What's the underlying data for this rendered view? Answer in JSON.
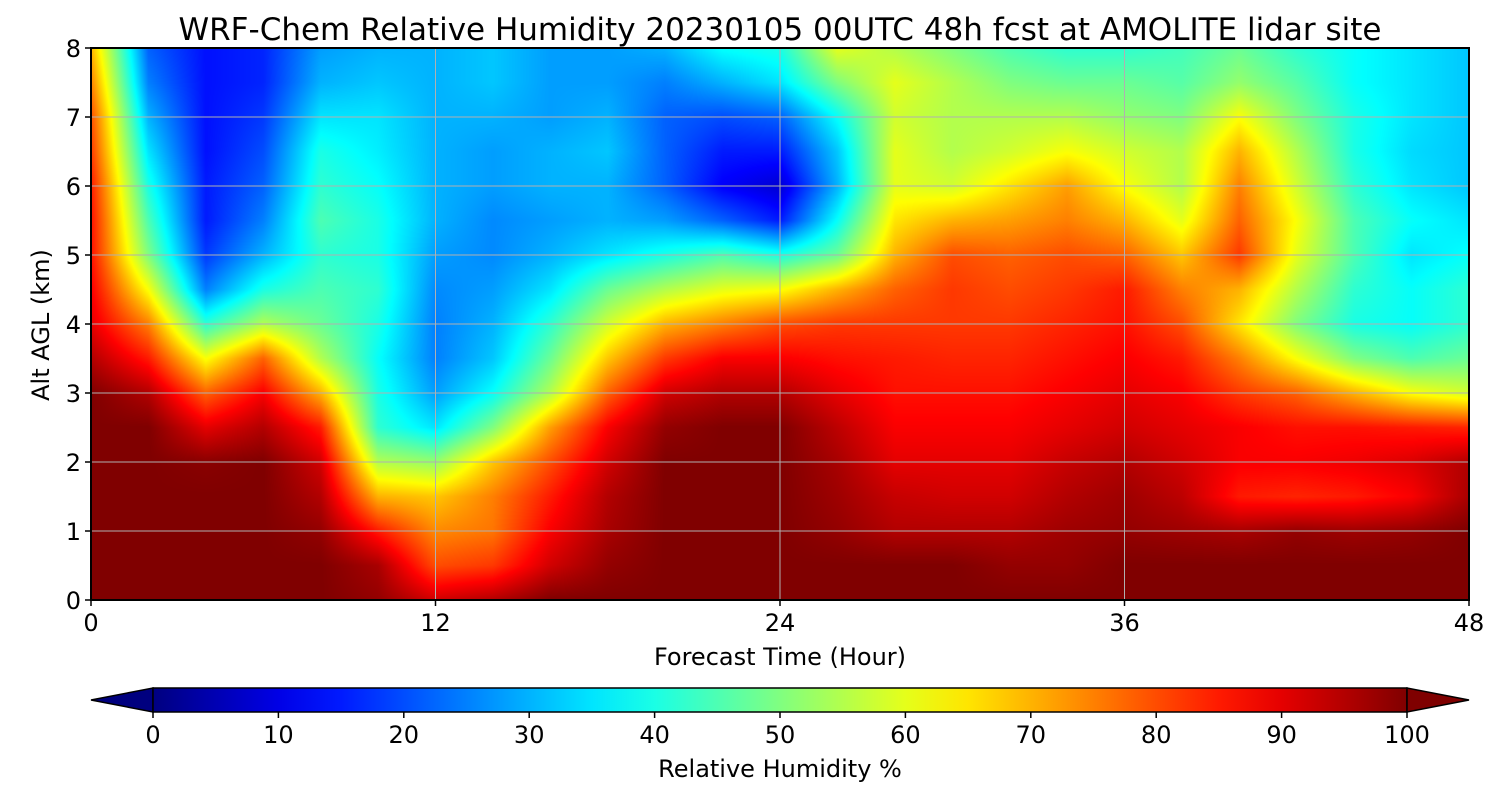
{
  "chart_data": {
    "type": "heatmap",
    "title": "WRF-Chem Relative Humidity 20230105 00UTC 48h fcst at AMOLITE lidar site",
    "xlabel": "Forecast Time (Hour)",
    "ylabel": "Alt AGL (km)",
    "xlim": [
      0,
      48
    ],
    "ylim": [
      0,
      8
    ],
    "xticks": [
      0,
      12,
      24,
      36,
      48
    ],
    "yticks": [
      0,
      1,
      2,
      3,
      4,
      5,
      6,
      7,
      8
    ],
    "grid": true,
    "colorbar": {
      "label": "Relative Humidity %",
      "range": [
        0,
        100
      ],
      "ticks": [
        0,
        10,
        20,
        30,
        40,
        50,
        60,
        70,
        80,
        90,
        100
      ],
      "colormap": "jet",
      "extend": "both",
      "orientation": "horizontal"
    },
    "x": [
      0,
      2,
      4,
      6,
      8,
      10,
      12,
      14,
      16,
      18,
      20,
      22,
      24,
      26,
      28,
      30,
      32,
      34,
      36,
      38,
      40,
      42,
      44,
      46,
      48
    ],
    "y": [
      0,
      0.5,
      1,
      1.5,
      2,
      2.5,
      3,
      3.5,
      4,
      4.5,
      5,
      5.5,
      6,
      6.5,
      7,
      7.5,
      8
    ],
    "z": [
      [
        100,
        100,
        100,
        100,
        100,
        98,
        92,
        95,
        100,
        100,
        100,
        100,
        100,
        100,
        100,
        100,
        100,
        100,
        100,
        100,
        100,
        100,
        100,
        100,
        100
      ],
      [
        100,
        100,
        100,
        100,
        100,
        96,
        80,
        82,
        92,
        98,
        100,
        100,
        100,
        100,
        100,
        100,
        98,
        98,
        100,
        100,
        100,
        100,
        100,
        100,
        100
      ],
      [
        100,
        100,
        100,
        100,
        98,
        85,
        74,
        76,
        88,
        96,
        100,
        100,
        100,
        98,
        95,
        95,
        95,
        97,
        98,
        97,
        96,
        98,
        97,
        98,
        100
      ],
      [
        100,
        100,
        100,
        100,
        95,
        70,
        68,
        75,
        85,
        95,
        100,
        100,
        100,
        97,
        93,
        92,
        92,
        95,
        97,
        94,
        85,
        84,
        85,
        88,
        96
      ],
      [
        100,
        100,
        99,
        100,
        92,
        55,
        52,
        68,
        80,
        92,
        100,
        100,
        100,
        96,
        90,
        90,
        90,
        93,
        95,
        92,
        88,
        88,
        89,
        91,
        95
      ],
      [
        100,
        100,
        90,
        95,
        85,
        42,
        35,
        50,
        72,
        88,
        98,
        100,
        100,
        94,
        88,
        88,
        88,
        90,
        92,
        90,
        88,
        86,
        86,
        85,
        84
      ],
      [
        100,
        95,
        78,
        88,
        70,
        40,
        28,
        38,
        55,
        78,
        92,
        95,
        95,
        90,
        86,
        86,
        86,
        88,
        90,
        88,
        82,
        78,
        70,
        62,
        58
      ],
      [
        95,
        85,
        62,
        78,
        55,
        38,
        25,
        32,
        48,
        68,
        82,
        88,
        88,
        86,
        85,
        84,
        84,
        86,
        88,
        85,
        75,
        62,
        50,
        45,
        48
      ],
      [
        90,
        75,
        42,
        55,
        48,
        40,
        25,
        30,
        42,
        58,
        70,
        75,
        80,
        82,
        82,
        82,
        82,
        84,
        86,
        80,
        65,
        50,
        40,
        38,
        42
      ],
      [
        88,
        62,
        25,
        40,
        45,
        42,
        26,
        28,
        35,
        48,
        55,
        60,
        62,
        70,
        78,
        82,
        80,
        82,
        85,
        75,
        70,
        55,
        42,
        38,
        42
      ],
      [
        86,
        50,
        18,
        30,
        42,
        40,
        28,
        26,
        30,
        35,
        40,
        45,
        40,
        48,
        70,
        80,
        78,
        80,
        78,
        68,
        82,
        60,
        45,
        35,
        38
      ],
      [
        86,
        45,
        15,
        25,
        45,
        40,
        30,
        26,
        28,
        30,
        28,
        22,
        15,
        38,
        65,
        70,
        72,
        75,
        70,
        60,
        78,
        62,
        45,
        38,
        35
      ],
      [
        85,
        40,
        15,
        22,
        42,
        38,
        30,
        28,
        30,
        30,
        22,
        12,
        8,
        30,
        60,
        58,
        65,
        72,
        62,
        55,
        75,
        58,
        42,
        35,
        32
      ],
      [
        82,
        35,
        14,
        20,
        40,
        36,
        30,
        28,
        30,
        32,
        22,
        15,
        15,
        32,
        60,
        55,
        58,
        62,
        58,
        55,
        70,
        55,
        40,
        34,
        32
      ],
      [
        80,
        30,
        14,
        18,
        35,
        35,
        30,
        30,
        28,
        30,
        22,
        20,
        22,
        38,
        58,
        55,
        55,
        55,
        52,
        50,
        62,
        50,
        40,
        35,
        32
      ],
      [
        75,
        25,
        14,
        16,
        30,
        32,
        30,
        32,
        28,
        28,
        25,
        30,
        35,
        50,
        60,
        55,
        50,
        48,
        48,
        46,
        52,
        46,
        38,
        35,
        32
      ],
      [
        70,
        22,
        14,
        16,
        28,
        30,
        30,
        32,
        28,
        28,
        30,
        38,
        40,
        60,
        55,
        50,
        45,
        42,
        42,
        44,
        48,
        42,
        38,
        35,
        32
      ]
    ]
  }
}
